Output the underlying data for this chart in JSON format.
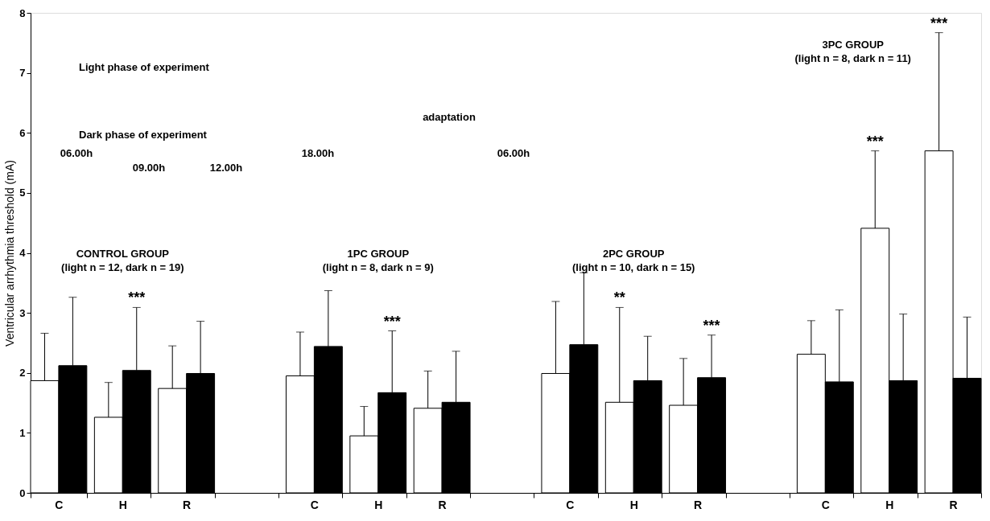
{
  "chart_data": {
    "type": "bar",
    "ylabel": "Ventricular arrhythmia threshold (mA)",
    "categories": [
      "C",
      "H",
      "R",
      null,
      "C",
      "H",
      "R",
      null,
      "C",
      "H",
      "R",
      null,
      "C",
      "H",
      "R"
    ],
    "series": [
      {
        "color": "#ffffff",
        "values": [
          1.87,
          1.26,
          1.74,
          null,
          1.95,
          0.95,
          1.41,
          null,
          1.99,
          1.51,
          1.46,
          null,
          2.31,
          4.41,
          5.7
        ],
        "errors": [
          [
            1.87,
            2.66
          ],
          [
            1.26,
            1.84
          ],
          [
            1.74,
            2.45
          ],
          null,
          [
            1.95,
            2.68
          ],
          [
            0.95,
            1.44
          ],
          [
            1.41,
            2.03
          ],
          null,
          [
            1.99,
            3.19
          ],
          [
            1.51,
            3.09
          ],
          [
            1.46,
            2.24
          ],
          null,
          [
            2.31,
            2.87
          ],
          [
            4.41,
            5.7
          ],
          [
            5.7,
            7.67
          ]
        ]
      },
      {
        "color": "#000000",
        "values": [
          2.12,
          2.04,
          1.99,
          null,
          2.44,
          1.67,
          1.51,
          null,
          2.47,
          1.87,
          1.92,
          null,
          1.85,
          1.87,
          1.91
        ],
        "errors": [
          [
            2.12,
            3.26
          ],
          [
            2.04,
            3.09
          ],
          [
            1.99,
            2.86
          ],
          null,
          [
            2.44,
            3.37
          ],
          [
            1.67,
            2.7
          ],
          [
            1.51,
            2.36
          ],
          null,
          [
            2.47,
            3.67
          ],
          [
            1.87,
            2.61
          ],
          [
            1.92,
            2.63
          ],
          null,
          [
            1.85,
            3.05
          ],
          [
            1.87,
            2.98
          ],
          [
            1.91,
            2.93
          ]
        ]
      }
    ],
    "ylim": [
      0,
      8
    ],
    "yticks": [
      0,
      1,
      2,
      3,
      4,
      5,
      6,
      7,
      8
    ],
    "grid": false,
    "legend": false,
    "annotations": [
      "CONTROL GROUP\n(light n = 12, dark n = 19)",
      "1PC GROUP\n(light n = 8, dark n = 9)",
      "2PC GROUP\n(light n = 10, dark n = 15)",
      "3PC GROUP\n(light n = 8, dark n = 11)",
      "Light phase of experiment",
      "Dark phase of experiment",
      "adaptation",
      "06.00h",
      "09.00h",
      "12.00h",
      "18.00h",
      "06.00h",
      {
        "text": "***",
        "y": 3.09
      },
      {
        "text": "***",
        "y": 2.7
      },
      {
        "text": "**",
        "y": 3.09
      },
      {
        "text": "***",
        "y": 2.63
      },
      {
        "text": "***",
        "y": 5.7
      },
      {
        "text": "***",
        "y": 7.67
      }
    ]
  }
}
